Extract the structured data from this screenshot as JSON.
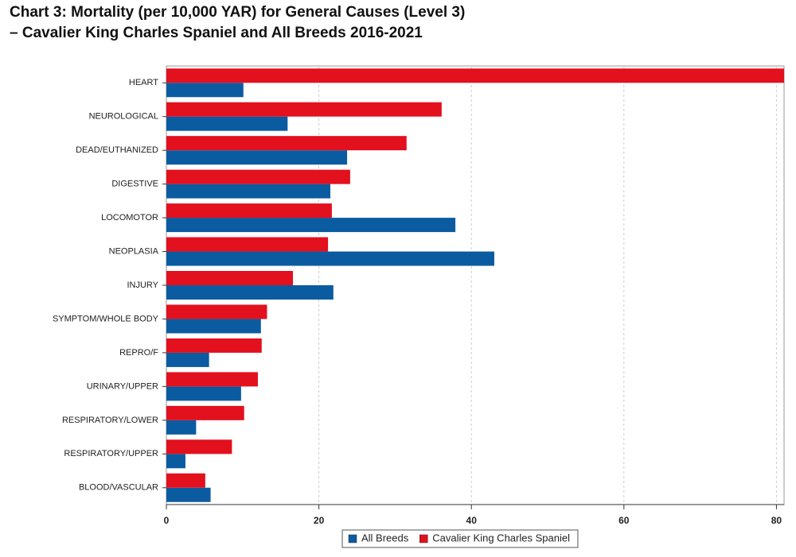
{
  "chart_data": {
    "type": "hbar",
    "title": "Chart 3: Mortality (per 10,000 YAR) for General Causes (Level 3)",
    "subtitle": "–  Cavalier King Charles Spaniel and All Breeds 2016-2021",
    "categories": [
      "HEART",
      "NEUROLOGICAL",
      "DEAD/EUTHANIZED",
      "DIGESTIVE",
      "LOCOMOTOR",
      "NEOPLASIA",
      "INJURY",
      "SYMPTOM/WHOLE BODY",
      "REPRO/F",
      "URINARY/UPPER",
      "RESPIRATORY/LOWER",
      "RESPIRATORY/UPPER",
      "BLOOD/VASCULAR"
    ],
    "series": [
      {
        "name": "All Breeds",
        "color": "#0b5ba1",
        "values": [
          10.1,
          15.9,
          23.7,
          21.5,
          37.9,
          43.0,
          21.9,
          12.4,
          5.6,
          9.8,
          3.9,
          2.5,
          5.8
        ]
      },
      {
        "name": "Cavalier King Charles Spaniel",
        "color": "#e3101e",
        "values": [
          81,
          36.1,
          31.5,
          24.1,
          21.7,
          21.2,
          16.6,
          13.2,
          12.5,
          12.0,
          10.2,
          8.6,
          5.1
        ]
      }
    ],
    "xlim": [
      0,
      81
    ],
    "xticks": [
      0,
      20,
      40,
      60,
      80
    ],
    "grid": true
  }
}
